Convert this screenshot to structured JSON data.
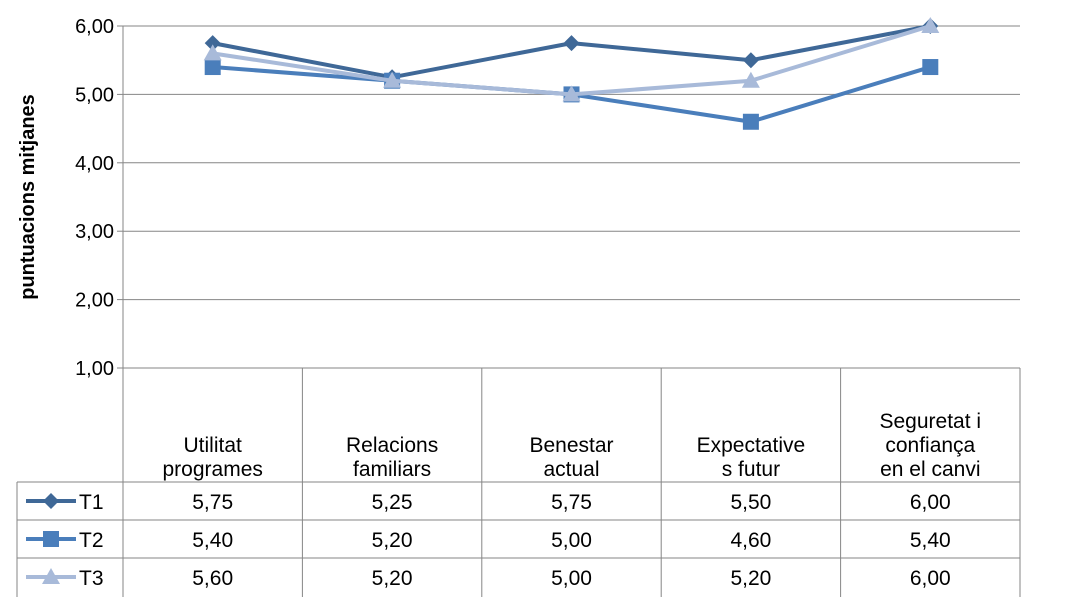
{
  "chart_data": {
    "type": "line",
    "ylabel": "puntuacions mitjanes",
    "xlabel": "",
    "ylim": [
      1,
      6
    ],
    "yticks": [
      "1,00",
      "2,00",
      "3,00",
      "4,00",
      "5,00",
      "6,00"
    ],
    "grid": true,
    "legend": "data-table",
    "categories": [
      [
        "Utilitat",
        "programes"
      ],
      [
        "Relacions",
        "familiars"
      ],
      [
        "Benestar",
        "actual"
      ],
      [
        "Expectative",
        "s futur"
      ],
      [
        "Seguretat i",
        "confiança",
        "en el canvi"
      ]
    ],
    "series": [
      {
        "name": "T1",
        "values": [
          5.75,
          5.25,
          5.75,
          5.5,
          6.0
        ],
        "labels": [
          "5,75",
          "5,25",
          "5,75",
          "5,50",
          "6,00"
        ],
        "color": "#3F6897",
        "marker": "diamond"
      },
      {
        "name": "T2",
        "values": [
          5.4,
          5.2,
          5.0,
          4.6,
          5.4
        ],
        "labels": [
          "5,40",
          "5,20",
          "5,00",
          "4,60",
          "5,40"
        ],
        "color": "#4A7EBB",
        "marker": "square"
      },
      {
        "name": "T3",
        "values": [
          5.6,
          5.2,
          5.0,
          5.2,
          6.0
        ],
        "labels": [
          "5,60",
          "5,20",
          "5,00",
          "5,20",
          "6,00"
        ],
        "color": "#A8BAD9",
        "marker": "triangle"
      }
    ]
  }
}
